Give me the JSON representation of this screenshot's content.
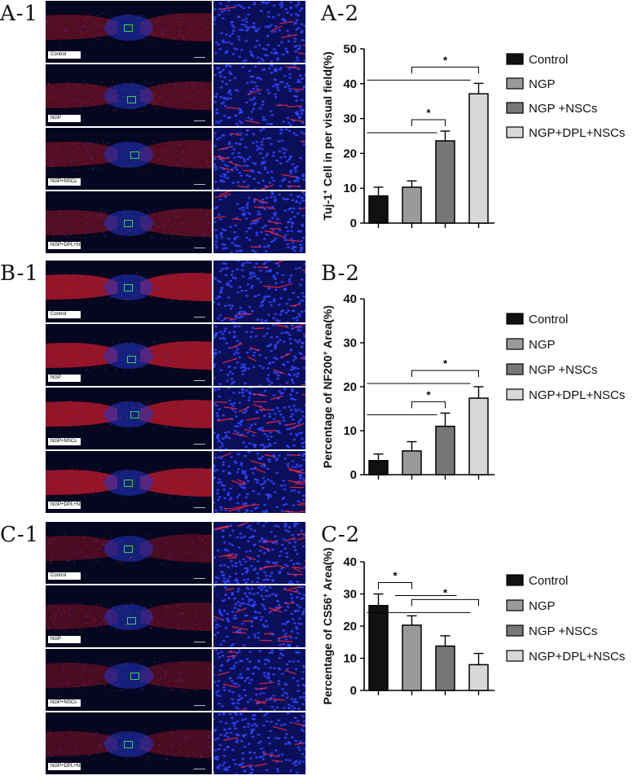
{
  "rows": [
    {
      "image_label": "A-1",
      "chart_label": "A-2",
      "micro_labels": [
        "Control",
        "NGP",
        "NGP+NSCs",
        "NGP+DPL+NSCs"
      ],
      "tissue": "thin"
    },
    {
      "image_label": "B-1",
      "chart_label": "B-2",
      "micro_labels": [
        "Control",
        "NGP",
        "NGP+NSCs",
        "NGP+DPL+NSCs"
      ],
      "tissue": "thick"
    },
    {
      "image_label": "C-1",
      "chart_label": "C-2",
      "micro_labels": [
        "Control",
        "NGP",
        "NGP+NSCs",
        "NGP+DPL+NSCs"
      ],
      "tissue": "sparse"
    }
  ],
  "colors": {
    "Control": "#111111",
    "NGP": "#9a9a9a",
    "NGP+NSCs": "#777777",
    "NGP+DPL+NSCs": "#d8d8d8",
    "fluor_red": "#e0202a",
    "fluor_blue": "#1a2ad8",
    "roi_green": "#33d45a"
  },
  "chart_data": [
    {
      "type": "bar",
      "categories": [
        "Control",
        "NGP",
        "NGP+NSCs",
        "NGP+DPL+NSCs"
      ],
      "legend_labels": [
        "Control",
        "NGP",
        "NGP +NSCs",
        "NGP+DPL+NSCs"
      ],
      "values": [
        7.8,
        10.3,
        23.6,
        37.1
      ],
      "errors": [
        2.5,
        1.8,
        2.8,
        3.0
      ],
      "ylabel_pre": "Tuj-1",
      "ylabel_sup": "+",
      "ylabel_post": " Cell in per visual field(%)",
      "ylim": [
        0,
        50
      ],
      "yticks": [
        0,
        10,
        20,
        30,
        40,
        50
      ],
      "legend_position": "right",
      "significance": [
        {
          "label": "*",
          "bracket": [
            1,
            2
          ],
          "line_from": 0
        },
        {
          "label": "*",
          "bracket": [
            1,
            3
          ],
          "line_from": 0
        }
      ]
    },
    {
      "type": "bar",
      "categories": [
        "Control",
        "NGP",
        "NGP+NSCs",
        "NGP+DPL+NSCs"
      ],
      "legend_labels": [
        "Control",
        "NGP",
        "NGP +NSCs",
        "NGP+DPL+NSCs"
      ],
      "values": [
        3.2,
        5.4,
        11.0,
        17.4
      ],
      "errors": [
        1.5,
        2.1,
        3.0,
        2.6
      ],
      "ylabel_pre": "Percentage of NF200",
      "ylabel_sup": "+",
      "ylabel_post": " Area(%)",
      "ylim": [
        0,
        40
      ],
      "yticks": [
        0,
        10,
        20,
        30,
        40
      ],
      "legend_position": "right",
      "significance": [
        {
          "label": "*",
          "bracket": [
            1,
            2
          ],
          "line_from": 0
        },
        {
          "label": "*",
          "bracket": [
            1,
            3
          ],
          "line_from": 0
        }
      ]
    },
    {
      "type": "bar",
      "categories": [
        "Control",
        "NGP",
        "NGP+NSCs",
        "NGP+DPL+NSCs"
      ],
      "legend_labels": [
        "Control",
        "NGP",
        "NGP +NSCs",
        "NGP+DPL+NSCs"
      ],
      "values": [
        26.4,
        20.3,
        13.8,
        8.0
      ],
      "errors": [
        3.6,
        2.9,
        3.2,
        3.5
      ],
      "ylabel_pre": "Percentage of CS56",
      "ylabel_sup": "+",
      "ylabel_post": " Area(%)",
      "ylim": [
        0,
        40
      ],
      "yticks": [
        0,
        10,
        20,
        30,
        40
      ],
      "legend_position": "right",
      "significance": [
        {
          "label": "*",
          "bracket": [
            0,
            1
          ],
          "line_to": 2
        },
        {
          "label": "*",
          "bracket": [
            1,
            3
          ],
          "line_from": 0
        }
      ]
    }
  ]
}
